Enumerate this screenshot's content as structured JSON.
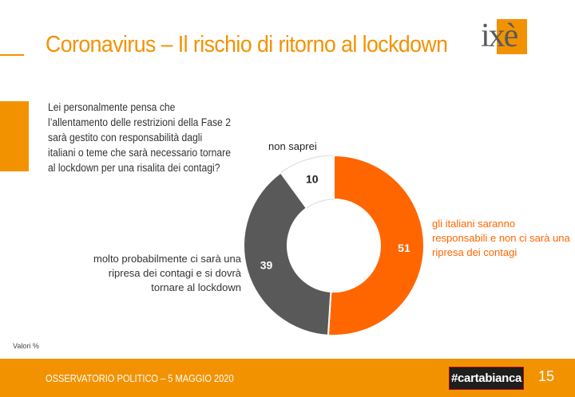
{
  "header": {
    "title": "Coronavirus – Il rischio di ritorno al lockdown",
    "logo": {
      "text": "ixè",
      "name": "ixe-logo"
    }
  },
  "question": "Lei personalmente pensa che l’allentamento delle restrizioni della Fase 2 sarà gestito con responsabilità dagli italiani o teme che sarà necessario tornare al lockdown per una risalita dei contagi?",
  "chart_data": {
    "type": "pie",
    "donut": true,
    "unit": "%",
    "slices": [
      {
        "label": "gli italiani saranno responsabili e non ci sarà una ripresa dei contagi",
        "value": 51,
        "color": "#ff6600"
      },
      {
        "label": "molto probabilmente ci sarà una ripresa dei contagi e si dovrà tornare al lockdown",
        "value": 39,
        "color": "#595959"
      },
      {
        "label": "non saprei",
        "value": 10,
        "color": "#ffffff"
      }
    ]
  },
  "note": "Valori %",
  "footer": {
    "text": "OSSERVATORIO POLITICO – 5 MAGGIO 2020",
    "badge": "#cartabianca",
    "page": "15"
  },
  "colors": {
    "accent": "#f39200",
    "positive": "#ff6600",
    "negative": "#595959"
  }
}
